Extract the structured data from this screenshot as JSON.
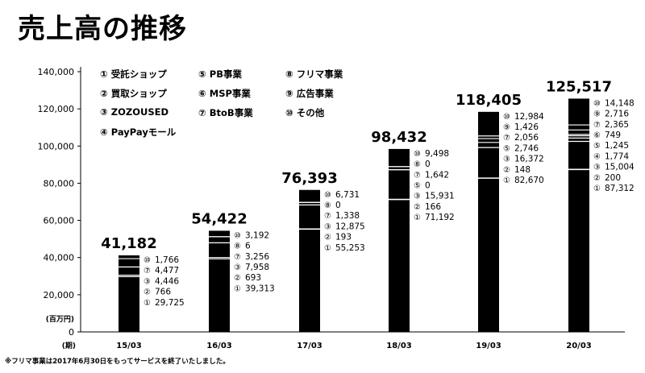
{
  "title": "売上高の推移",
  "footnote": "※フリマ事業は2017年6月30日をもってサービスを終了いたしました。",
  "legend": [
    {
      "num": "①",
      "label": "受託ショップ"
    },
    {
      "num": "②",
      "label": "買取ショップ"
    },
    {
      "num": "③",
      "label": "ZOZOUSED"
    },
    {
      "num": "④",
      "label": "PayPayモール"
    },
    {
      "num": "⑤",
      "label": "PB事業"
    },
    {
      "num": "⑥",
      "label": "MSP事業"
    },
    {
      "num": "⑦",
      "label": "BtoB事業"
    },
    {
      "num": "⑧",
      "label": "フリマ事業"
    },
    {
      "num": "⑨",
      "label": "広告事業"
    },
    {
      "num": "⑩",
      "label": "その他"
    }
  ],
  "chart_data": {
    "type": "bar",
    "title": "売上高の推移",
    "ylabel": "(百万円)",
    "xlabel": "(期)",
    "ylim": [
      0,
      140000
    ],
    "yticks": [
      "0",
      "20,000",
      "40,000",
      "60,000",
      "80,000",
      "100,000",
      "120,000",
      "140,000"
    ],
    "categories": [
      "15/03",
      "16/03",
      "17/03",
      "18/03",
      "19/03",
      "20/03"
    ],
    "totals": [
      "41,182",
      "54,422",
      "76,393",
      "98,432",
      "118,405",
      "125,517"
    ],
    "values": [
      41182,
      54422,
      76393,
      98432,
      118405,
      125517
    ],
    "segments": [
      [
        {
          "num": "①",
          "text": "29,725",
          "value": 29725
        },
        {
          "num": "②",
          "text": "766",
          "value": 766
        },
        {
          "num": "③",
          "text": "4,446",
          "value": 4446
        },
        {
          "num": "⑦",
          "text": "4,477",
          "value": 4477
        },
        {
          "num": "⑩",
          "text": "1,766",
          "value": 1766
        }
      ],
      [
        {
          "num": "①",
          "text": "39,313",
          "value": 39313
        },
        {
          "num": "②",
          "text": "693",
          "value": 693
        },
        {
          "num": "③",
          "text": "7,958",
          "value": 7958
        },
        {
          "num": "⑦",
          "text": "3,256",
          "value": 3256
        },
        {
          "num": "⑧",
          "text": "6",
          "value": 6
        },
        {
          "num": "⑩",
          "text": "3,192",
          "value": 3192
        }
      ],
      [
        {
          "num": "①",
          "text": "55,253",
          "value": 55253
        },
        {
          "num": "②",
          "text": "193",
          "value": 193
        },
        {
          "num": "③",
          "text": "12,875",
          "value": 12875
        },
        {
          "num": "⑦",
          "text": "1,338",
          "value": 1338
        },
        {
          "num": "⑧",
          "text": "0",
          "value": 0
        },
        {
          "num": "⑩",
          "text": "6,731",
          "value": 6731
        }
      ],
      [
        {
          "num": "①",
          "text": "71,192",
          "value": 71192
        },
        {
          "num": "②",
          "text": "166",
          "value": 166
        },
        {
          "num": "③",
          "text": "15,931",
          "value": 15931
        },
        {
          "num": "⑤",
          "text": "0",
          "value": 0
        },
        {
          "num": "⑦",
          "text": "1,642",
          "value": 1642
        },
        {
          "num": "⑧",
          "text": "0",
          "value": 0
        },
        {
          "num": "⑩",
          "text": "9,498",
          "value": 9498
        }
      ],
      [
        {
          "num": "①",
          "text": "82,670",
          "value": 82670
        },
        {
          "num": "②",
          "text": "148",
          "value": 148
        },
        {
          "num": "③",
          "text": "16,372",
          "value": 16372
        },
        {
          "num": "⑤",
          "text": "2,746",
          "value": 2746
        },
        {
          "num": "⑦",
          "text": "2,056",
          "value": 2056
        },
        {
          "num": "⑨",
          "text": "1,426",
          "value": 1426
        },
        {
          "num": "⑩",
          "text": "12,984",
          "value": 12984
        }
      ],
      [
        {
          "num": "①",
          "text": "87,312",
          "value": 87312
        },
        {
          "num": "②",
          "text": "200",
          "value": 200
        },
        {
          "num": "③",
          "text": "15,004",
          "value": 15004
        },
        {
          "num": "④",
          "text": "1,774",
          "value": 1774
        },
        {
          "num": "⑤",
          "text": "1,245",
          "value": 1245
        },
        {
          "num": "⑥",
          "text": "749",
          "value": 749
        },
        {
          "num": "⑦",
          "text": "2,365",
          "value": 2365
        },
        {
          "num": "⑨",
          "text": "2,716",
          "value": 2716
        },
        {
          "num": "⑩",
          "text": "14,148",
          "value": 14148
        }
      ]
    ],
    "grid": false,
    "legend_position": "top-left"
  }
}
